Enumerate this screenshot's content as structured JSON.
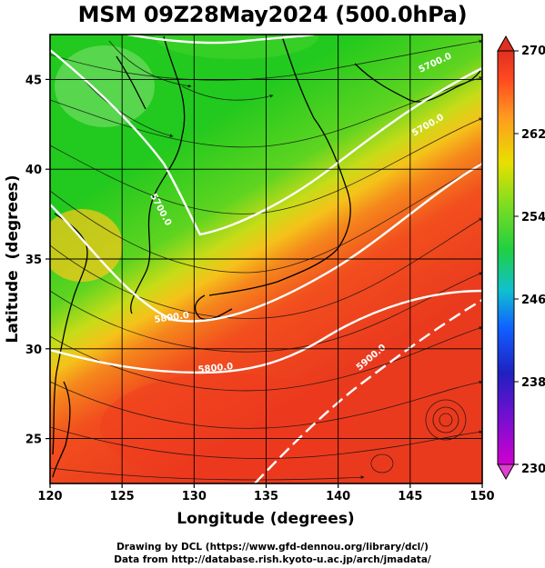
{
  "title": "MSM 09Z28May2024 (500.0hPa)",
  "credits": {
    "line1": "Drawing by DCL (https://www.gfd-dennou.org/library/dcl/)",
    "line2": "Data from http://database.rish.kyoto-u.ac.jp/arch/jmadata/"
  },
  "chart_data": {
    "type": "heatmap",
    "xlabel": "Longitude (degrees)",
    "ylabel": "Latitude  (degrees)",
    "xlim": [
      120,
      150
    ],
    "ylim": [
      22.5,
      47.5
    ],
    "x_ticks": [
      120,
      125,
      130,
      135,
      140,
      145,
      150
    ],
    "y_ticks": [
      25,
      30,
      35,
      40,
      45
    ],
    "colorbar": {
      "min": 230,
      "max": 270,
      "ticks": [
        230,
        238,
        246,
        254,
        262,
        270
      ],
      "colors": [
        "#d000d0",
        "#2020c0",
        "#1060ff",
        "#10c0d0",
        "#20d040",
        "#80dd20",
        "#e8e000",
        "#ff9a20",
        "#ff4a20",
        "#e03020"
      ]
    },
    "contour_labels": [
      "5700.0",
      "5800.0",
      "5900.0",
      "5700.0",
      "5700.0"
    ],
    "colors": {
      "cold_region": "#22c91e",
      "mid_region": "#f0d01a",
      "warm_region": "#f04a1e",
      "contour": "#ffffff",
      "coastline": "#000000",
      "streamline": "#111111"
    }
  }
}
